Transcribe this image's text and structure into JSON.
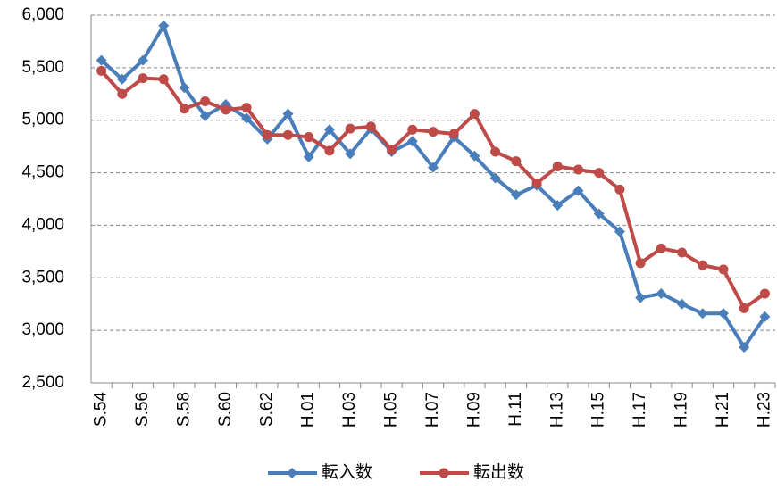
{
  "chart_data": {
    "type": "line",
    "categories": [
      "S.54",
      null,
      "S.56",
      null,
      "S.58",
      null,
      "S.60",
      null,
      "S.62",
      null,
      "H.01",
      null,
      "H.03",
      null,
      "H.05",
      null,
      "H.07",
      null,
      "H.09",
      null,
      "H.11",
      null,
      "H.13",
      null,
      "H.15",
      null,
      "H.17",
      null,
      "H.19",
      null,
      "H.21",
      null,
      "H.23"
    ],
    "series": [
      {
        "name": "転入数",
        "color": "#4a7ebb",
        "marker": "diamond",
        "values": [
          5570,
          5390,
          5570,
          5900,
          5310,
          5040,
          5150,
          5020,
          4820,
          5060,
          4650,
          4910,
          4680,
          4920,
          4700,
          4800,
          4550,
          4840,
          4660,
          4450,
          4290,
          4380,
          4190,
          4330,
          4110,
          3940,
          3310,
          3350,
          3250,
          3160,
          3160,
          2840,
          3130
        ]
      },
      {
        "name": "転出数",
        "color": "#be4b48",
        "marker": "circle",
        "values": [
          5470,
          5250,
          5400,
          5390,
          5110,
          5180,
          5100,
          5120,
          4860,
          4860,
          4840,
          4710,
          4920,
          4940,
          4720,
          4910,
          4890,
          4870,
          5060,
          4700,
          4610,
          4400,
          4560,
          4530,
          4500,
          4340,
          3640,
          3780,
          3740,
          3620,
          3580,
          3210,
          3350
        ]
      }
    ],
    "ylim": [
      2500,
      6000
    ],
    "yticks": [
      {
        "value": 2500,
        "label": "2,500"
      },
      {
        "value": 3000,
        "label": "3,000"
      },
      {
        "value": 3500,
        "label": "3,500"
      },
      {
        "value": 4000,
        "label": "4,000"
      },
      {
        "value": 4500,
        "label": "4,500"
      },
      {
        "value": 5000,
        "label": "5,000"
      },
      {
        "value": 5500,
        "label": "5,500"
      },
      {
        "value": 6000,
        "label": "6,000"
      }
    ],
    "grid": true,
    "legend": "bottom"
  }
}
